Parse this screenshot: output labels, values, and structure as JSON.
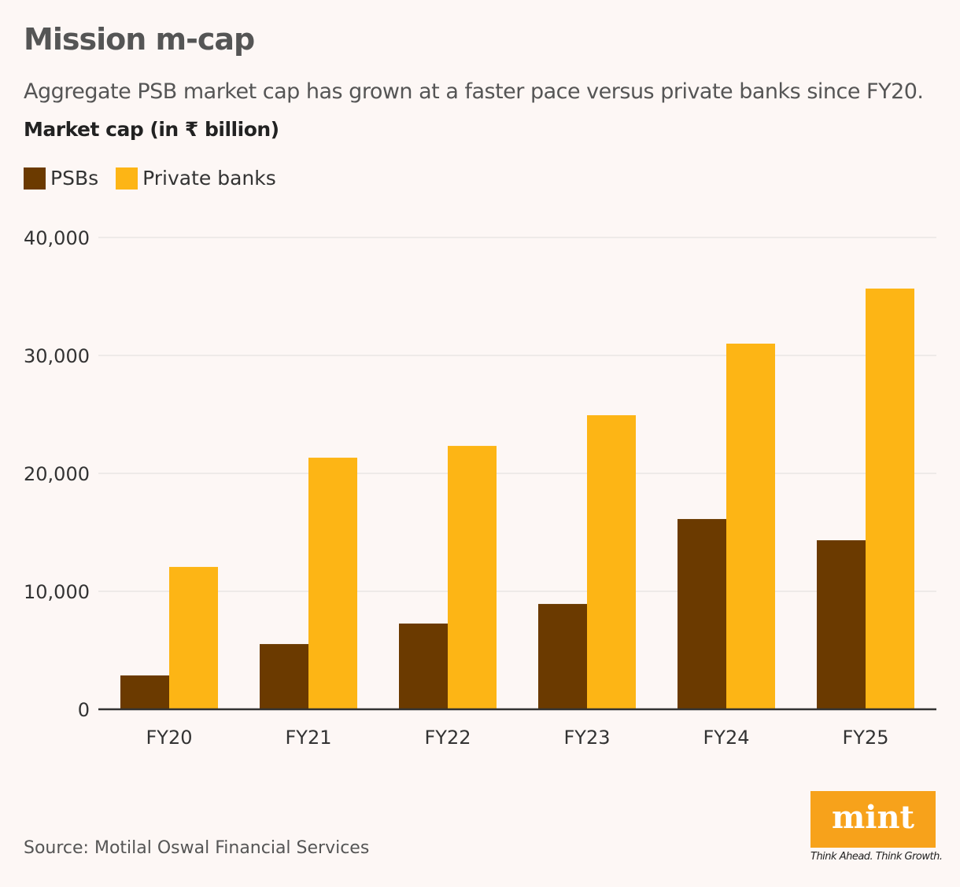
{
  "title": "Mission m-cap",
  "subtitle": "Aggregate PSB market cap has grown at a faster pace versus private banks since FY20.",
  "source": "Source: Motilal Oswal Financial Services",
  "logo": {
    "text": "mint",
    "tagline": "Think Ahead. Think Growth.",
    "color": "#f7a21b"
  },
  "chart_data": {
    "type": "bar",
    "title": "Mission m-cap",
    "ylabel": "Market cap (in ₹ billion)",
    "xlabel": "",
    "categories": [
      "FY20",
      "FY21",
      "FY22",
      "FY23",
      "FY24",
      "FY25"
    ],
    "series": [
      {
        "name": "PSBs",
        "color": "#6b3a00",
        "values": [
          2870,
          5530,
          7270,
          8930,
          16130,
          14330
        ]
      },
      {
        "name": "Private banks",
        "color": "#fdb515",
        "values": [
          12070,
          21330,
          22330,
          24930,
          31000,
          35670
        ]
      }
    ],
    "ylim": [
      0,
      40000
    ],
    "yticks": [
      "0",
      "10,000",
      "20,000",
      "30,000",
      "40,000"
    ],
    "grid": true,
    "legend": "top-left"
  }
}
